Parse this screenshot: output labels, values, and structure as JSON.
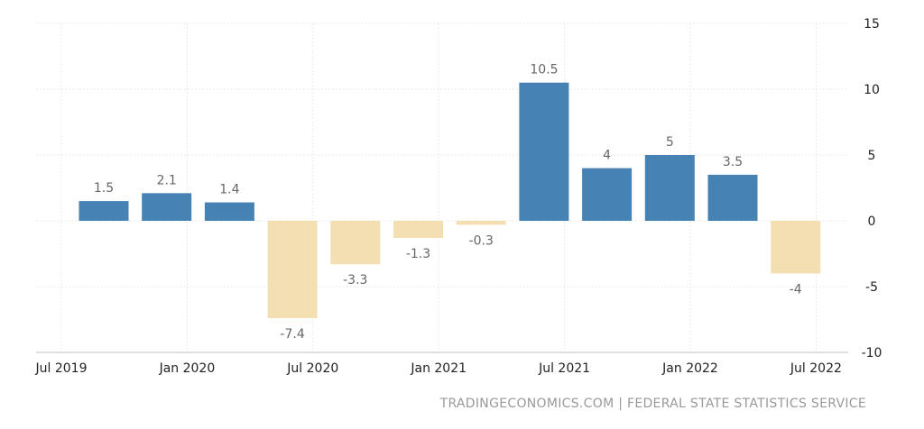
{
  "chart_data": {
    "type": "bar",
    "categories": [
      "Q3 2019",
      "Q4 2019",
      "Q1 2020",
      "Q2 2020",
      "Q3 2020",
      "Q4 2020",
      "Q1 2021",
      "Q2 2021",
      "Q3 2021",
      "Q4 2021",
      "Q1 2022",
      "Q2 2022"
    ],
    "values": [
      1.5,
      2.1,
      1.4,
      -7.4,
      -3.3,
      -1.3,
      -0.3,
      10.5,
      4,
      5,
      3.5,
      -4
    ],
    "data_labels": [
      "1.5",
      "2.1",
      "1.4",
      "-7.4",
      "-3.3",
      "-1.3",
      "-0.3",
      "10.5",
      "4",
      "5",
      "3.5",
      "-4"
    ],
    "x_tick_labels": [
      "Jul 2019",
      "Jan 2020",
      "Jul 2020",
      "Jan 2021",
      "Jul 2021",
      "Jan 2022",
      "Jul 2022"
    ],
    "y_ticks": [
      15,
      10,
      5,
      0,
      -5,
      -10
    ],
    "ylim": [
      -10,
      15
    ],
    "y_axis_side": "right",
    "grid": true,
    "colors": {
      "positive": "#4682b4",
      "negative": "#f3dfb2"
    }
  },
  "source": "TRADINGECONOMICS.COM | FEDERAL STATE STATISTICS SERVICE"
}
